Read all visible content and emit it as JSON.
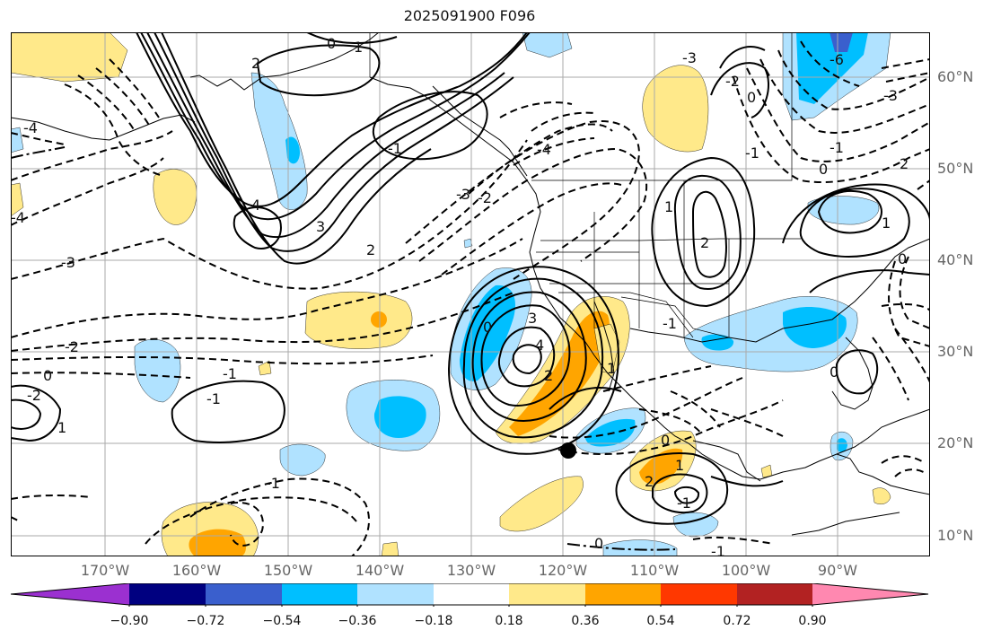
{
  "title": "2025091900 F096",
  "lat_labels": [
    "60°N",
    "50°N",
    "40°N",
    "30°N",
    "20°N",
    "10°N"
  ],
  "lon_labels": [
    "170°W",
    "160°W",
    "150°W",
    "140°W",
    "130°W",
    "120°W",
    "110°W",
    "100°W",
    "90°W"
  ],
  "colorbar": {
    "ticks": [
      "−0.90",
      "−0.72",
      "−0.54",
      "−0.36",
      "−0.18",
      "0.18",
      "0.36",
      "0.54",
      "0.72",
      "0.90"
    ],
    "colors": [
      "#9b30d0",
      "#000080",
      "#3a5fcd",
      "#00bfff",
      "#b0e2ff",
      "#ffffff",
      "#ffe98a",
      "#ffa500",
      "#ff3800",
      "#b22222",
      "#ff88b0"
    ]
  },
  "contour_labels": [
    {
      "id": "c1",
      "text": "0"
    },
    {
      "id": "c2",
      "text": "1"
    },
    {
      "id": "c3",
      "text": "2"
    },
    {
      "id": "c4",
      "text": "-4"
    },
    {
      "id": "c5",
      "text": "-3"
    },
    {
      "id": "c6",
      "text": "-2"
    },
    {
      "id": "c7",
      "text": "-4"
    },
    {
      "id": "c8",
      "text": "4"
    },
    {
      "id": "c9",
      "text": "3"
    },
    {
      "id": "c10",
      "text": "2"
    },
    {
      "id": "c11",
      "text": "-1"
    },
    {
      "id": "c12",
      "text": "-2"
    },
    {
      "id": "c13",
      "text": "-3"
    },
    {
      "id": "c14",
      "text": "-4"
    },
    {
      "id": "c15",
      "text": "-3"
    },
    {
      "id": "c16",
      "text": "-2"
    },
    {
      "id": "c17",
      "text": "-1"
    },
    {
      "id": "c18",
      "text": "0"
    },
    {
      "id": "c19",
      "text": "-6"
    },
    {
      "id": "c20",
      "text": "-3"
    },
    {
      "id": "c21",
      "text": "-1"
    },
    {
      "id": "c22",
      "text": "0"
    },
    {
      "id": "c23",
      "text": "2"
    },
    {
      "id": "c24",
      "text": "1"
    },
    {
      "id": "c25",
      "text": "2"
    },
    {
      "id": "c26",
      "text": "0"
    },
    {
      "id": "c27",
      "text": "1"
    },
    {
      "id": "c28",
      "text": "-2"
    },
    {
      "id": "c29",
      "text": "0"
    },
    {
      "id": "c30",
      "text": "1"
    },
    {
      "id": "c31",
      "text": "-1"
    },
    {
      "id": "c32",
      "text": "-1"
    },
    {
      "id": "c33",
      "text": "0"
    },
    {
      "id": "c34",
      "text": "3"
    },
    {
      "id": "c35",
      "text": "4"
    },
    {
      "id": "c36",
      "text": "2"
    },
    {
      "id": "c37",
      "text": "1"
    },
    {
      "id": "c38",
      "text": "-1"
    },
    {
      "id": "c39",
      "text": "0"
    },
    {
      "id": "c40",
      "text": "1"
    },
    {
      "id": "c41",
      "text": "2"
    },
    {
      "id": "c42",
      "text": "-1"
    },
    {
      "id": "c43",
      "text": "0"
    },
    {
      "id": "c44",
      "text": "-1"
    },
    {
      "id": "c45",
      "text": "0"
    },
    {
      "id": "c46",
      "text": "-1"
    }
  ]
}
